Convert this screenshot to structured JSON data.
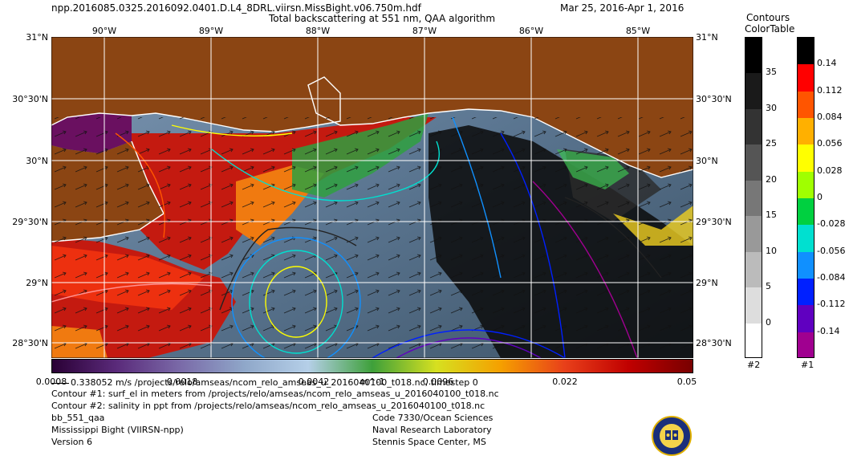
{
  "header": {
    "filename": "npp.2016085.0325.2016092.0401.D.L4_8DRL.viirsn.MissBight.v06.750m.hdf",
    "title": "Total backscattering at 551 nm, QAA algorithm",
    "date_range": "Mar 25, 2016-Apr  1, 2016"
  },
  "map": {
    "lat_labels": [
      "31°N",
      "30°30'N",
      "30°N",
      "29°30'N",
      "29°N",
      "28°30'N"
    ],
    "lon_labels": [
      "90°W",
      "89°W",
      "88°W",
      "87°W",
      "86°W",
      "85°W"
    ],
    "colors": {
      "land": "#8b4513",
      "water": "#5f7d98",
      "coast": "#ffffff",
      "grid": "#ffffff"
    }
  },
  "colorbar": {
    "ticks": [
      "0.0008",
      "0.0018",
      "0.0042",
      "m^-1",
      "0.0096",
      "0.022",
      "0.05"
    ],
    "colors": [
      "#2a0035",
      "#5a2a7a",
      "#7a6aa8",
      "#8fa7c9",
      "#b5cfe8",
      "#3ea03a",
      "#d6e020",
      "#f5a000",
      "#e8401a",
      "#c00000",
      "#780000"
    ]
  },
  "contours_panel": {
    "title_line1": "Contours",
    "title_line2": "ColorTable",
    "gray_labels": [
      "35",
      "30",
      "25",
      "20",
      "15",
      "10",
      "5",
      "0"
    ],
    "gray_colors": [
      "#000000",
      "#1a1a1a",
      "#333333",
      "#555555",
      "#777777",
      "#999999",
      "#bbbbbb",
      "#dddddd",
      "#ffffff"
    ],
    "gray_id": "#2",
    "color_labels": [
      "0.14",
      "0.112",
      "0.084",
      "0.056",
      "0.028",
      "0",
      "-0.028",
      "-0.056",
      "-0.084",
      "-0.112",
      "-0.14"
    ],
    "color_colors": [
      "#000000",
      "#ff0000",
      "#ff5500",
      "#ffb000",
      "#ffff00",
      "#a0ff00",
      "#00d040",
      "#00e0d0",
      "#1090ff",
      "#0020ff",
      "#6000c0",
      "#a00090"
    ],
    "color_id": "#1"
  },
  "footer": {
    "vector_line": "0.338052 m/s /projects/relo/amseas/ncom_relo_amseas_u_2016040100_t018.nc, timestep 0",
    "contour1": "Contour #1: surf_el in meters from /projects/relo/amseas/ncom_relo_amseas_u_2016040100_t018.nc",
    "contour2": "Contour #2: salinity in ppt from /projects/relo/amseas/ncom_relo_amseas_u_2016040100_t018.nc",
    "product": "bb_551_qaa",
    "region": "Mississippi Bight (VIIRSN-npp)",
    "version": "Version 6",
    "org1": "Code 7330/Ocean Sciences",
    "org2": "Naval Research Laboratory",
    "org3": "Stennis Space Center, MS"
  }
}
